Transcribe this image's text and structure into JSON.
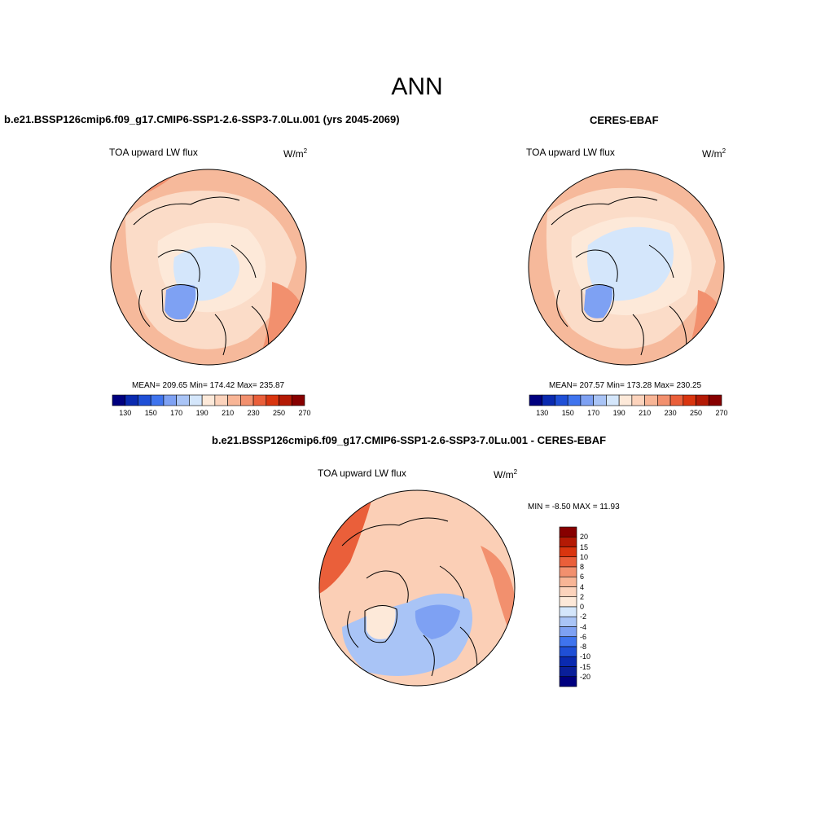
{
  "figure": {
    "season": "ANN"
  },
  "panels": [
    {
      "title": "b.e21.BSSP126cmip6.f09_g17.CMIP6-SSP1-2.6-SSP3-7.0Lu.001 (yrs 2045-2069)",
      "variable": "TOA upward LW flux",
      "units_base": "W/m",
      "units_exp": "2",
      "stats": "MEAN= 209.65  Min= 174.42  Max= 235.87"
    },
    {
      "title": "CERES-EBAF",
      "variable": "TOA upward LW flux",
      "units_base": "W/m",
      "units_exp": "2",
      "stats": "MEAN= 207.57  Min= 173.28  Max= 230.25"
    },
    {
      "title": "b.e21.BSSP126cmip6.f09_g17.CMIP6-SSP1-2.6-SSP3-7.0Lu.001 - CERES-EBAF",
      "variable": "TOA upward LW flux",
      "units_base": "W/m",
      "units_exp": "2",
      "stats": "MIN =  -8.50 MAX =  11.93"
    }
  ],
  "colorbars": {
    "absolute": {
      "labels": [
        "130",
        "150",
        "170",
        "190",
        "210",
        "230",
        "250",
        "270"
      ],
      "colors": [
        "#00007f",
        "#0a2ab0",
        "#1f4fd6",
        "#3f74ee",
        "#7ea1f3",
        "#a9c4f6",
        "#d4e6fb",
        "#fde9d9",
        "#fcd3bc",
        "#f8b596",
        "#f2906e",
        "#ea5f3a",
        "#d9350f",
        "#b41a05",
        "#870000"
      ]
    },
    "difference": {
      "labels": [
        "20",
        "15",
        "10",
        "8",
        "6",
        "4",
        "2",
        "0",
        "-2",
        "-4",
        "-6",
        "-8",
        "-10",
        "-15",
        "-20"
      ],
      "colors": [
        "#870000",
        "#b41a05",
        "#d9350f",
        "#ea5f3a",
        "#f2906e",
        "#f8b596",
        "#fcd3bc",
        "#fde9d9",
        "#d4e6fb",
        "#a9c4f6",
        "#7ea1f3",
        "#3f74ee",
        "#1f4fd6",
        "#0a2ab0",
        "#0a1f9a",
        "#00007f"
      ]
    }
  },
  "map_colors": {
    "ocean_warm": "#f6b99b",
    "land_mid": "#fbdcc8",
    "polar_light": "#fde9d9",
    "ice_blue": "#d4e6fb",
    "greenland_blue": "#7ea1f3",
    "warm_strong": "#f2906e",
    "diff_base": "#fbcfb6",
    "diff_high": "#ea5f3a",
    "diff_blue": "#a9c4f6"
  }
}
